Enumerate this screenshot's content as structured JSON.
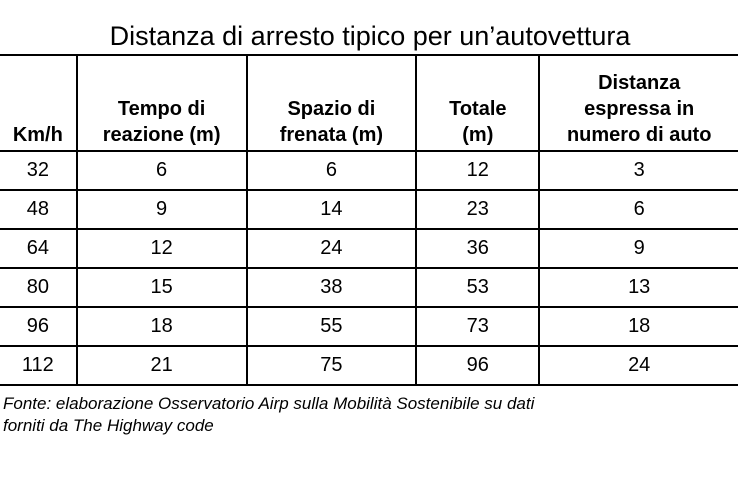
{
  "title": "Distanza di arresto tipico per un’autovettura",
  "table": {
    "headers": [
      "Km/h",
      "Tempo di\nreazione (m)",
      "Spazio di\nfrenata (m)",
      "Totale\n(m)",
      "Distanza\nespressa in\nnumero di auto"
    ],
    "rows": [
      [
        "32",
        "6",
        "6",
        "12",
        "3"
      ],
      [
        "48",
        "9",
        "14",
        "23",
        "6"
      ],
      [
        "64",
        "12",
        "24",
        "36",
        "9"
      ],
      [
        "80",
        "15",
        "38",
        "53",
        "13"
      ],
      [
        "96",
        "18",
        "55",
        "73",
        "18"
      ],
      [
        "112",
        "21",
        "75",
        "96",
        "24"
      ]
    ]
  },
  "source": {
    "line1": "Fonte: elaborazione Osservatorio Airp sulla Mobilità Sostenibile su dati",
    "line2": "forniti da The Highway code"
  }
}
